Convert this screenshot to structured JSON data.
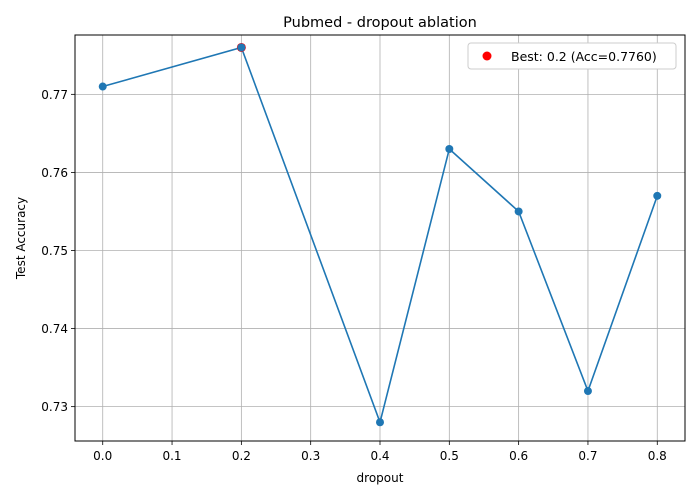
{
  "chart_data": {
    "type": "line",
    "title": "Pubmed - dropout ablation",
    "xlabel": "dropout",
    "ylabel": "Test Accuracy",
    "x": [
      0.0,
      0.2,
      0.4,
      0.5,
      0.6,
      0.7,
      0.8
    ],
    "series": [
      {
        "values": [
          0.771,
          0.776,
          0.728,
          0.763,
          0.755,
          0.732,
          0.757
        ],
        "color": "#1f77b4"
      }
    ],
    "highlight": {
      "x": 0.2,
      "y": 0.776,
      "label": "Best: 0.2 (Acc=0.7760)",
      "color": "#ff0000"
    },
    "xlim": [
      -0.04,
      0.84
    ],
    "ylim": [
      0.7256,
      0.7776
    ],
    "xticks": [
      "0.0",
      "0.1",
      "0.2",
      "0.3",
      "0.4",
      "0.5",
      "0.6",
      "0.7",
      "0.8"
    ],
    "yticks": [
      "0.73",
      "0.74",
      "0.75",
      "0.76",
      "0.77"
    ],
    "grid": true,
    "legend_position": "top-right"
  }
}
